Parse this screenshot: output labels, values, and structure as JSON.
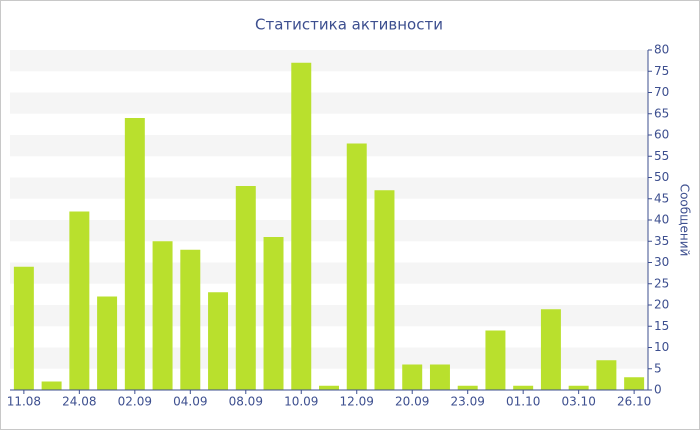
{
  "chart_data": {
    "type": "bar",
    "title": "Статистика активности",
    "y_label": "Сообщений",
    "categories": [
      "11.08",
      null,
      "24.08",
      null,
      "02.09",
      null,
      "04.09",
      null,
      "08.09",
      null,
      "10.09",
      null,
      "12.09",
      null,
      "20.09",
      null,
      "23.09",
      null,
      "01.10",
      null,
      "03.10",
      null,
      "26.10"
    ],
    "values": [
      29,
      2,
      42,
      22,
      64,
      35,
      33,
      23,
      48,
      36,
      77,
      1,
      58,
      47,
      6,
      6,
      1,
      14,
      1,
      19,
      1,
      7,
      3
    ],
    "color": "#b9e02d",
    "ylim": [
      0,
      80
    ],
    "yticks": [
      0,
      5,
      10,
      15,
      20,
      25,
      30,
      35,
      40,
      45,
      50,
      55,
      60,
      65,
      70,
      75,
      80
    ],
    "grid": true
  }
}
